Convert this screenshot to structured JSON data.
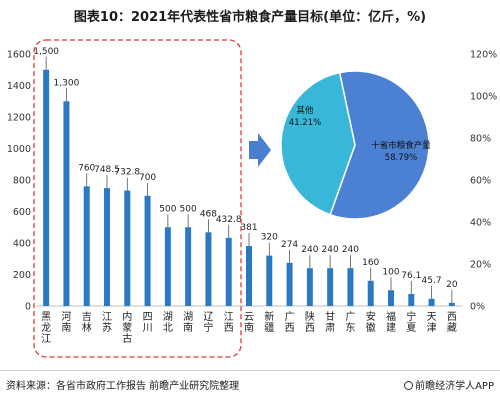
{
  "chart_data": [
    {
      "type": "bar",
      "title": "图表10：2021年代表性省市粮食产量目标(单位：亿斤，%)",
      "categories": [
        "黑龙江",
        "河南",
        "吉林",
        "江苏",
        "内蒙古",
        "四川",
        "湖北",
        "湖南",
        "辽宁",
        "江西",
        "云南",
        "新疆",
        "广西",
        "陕西",
        "甘肃",
        "广东",
        "安徽",
        "福建",
        "宁夏",
        "天津",
        "西藏"
      ],
      "values": [
        1500,
        1300,
        760,
        748.5,
        732.8,
        700,
        500,
        500,
        468,
        432.8,
        381,
        320,
        274,
        240,
        240,
        240,
        160,
        100,
        76.1,
        45.7,
        20
      ],
      "value_labels": [
        "1,500",
        "1,300",
        "760",
        "748.5",
        "732.8",
        "700",
        "500",
        "500",
        "468",
        "432.8",
        "381",
        "320",
        "274",
        "240",
        "240",
        "240",
        "160",
        "100",
        "76.1",
        "45.7",
        "20"
      ],
      "ylim": [
        0,
        1600
      ],
      "yticks": [
        "0",
        "200",
        "400",
        "600",
        "800",
        "1000",
        "1200",
        "1400",
        "1600"
      ],
      "grid": false,
      "bar_color": "#2979c3",
      "highlight_color": "#e03a3a"
    },
    {
      "type": "pie",
      "labels": [
        "十省市粮食产量",
        "其他"
      ],
      "values": [
        58.79,
        41.21
      ],
      "value_labels": [
        "58.79%",
        "41.21%"
      ],
      "colors": [
        "#4b80d3",
        "#39b7d9"
      ]
    }
  ],
  "secondary_axis": {
    "ticks": [
      "0%",
      "20%",
      "40%",
      "60%",
      "80%",
      "100%",
      "120%"
    ]
  },
  "footer": {
    "source": "资料来源：各省市政府工作报告 前瞻产业研究院整理",
    "brand": "前瞻经济学人APP"
  },
  "colors": {
    "arrow": "#4a7fd0"
  }
}
